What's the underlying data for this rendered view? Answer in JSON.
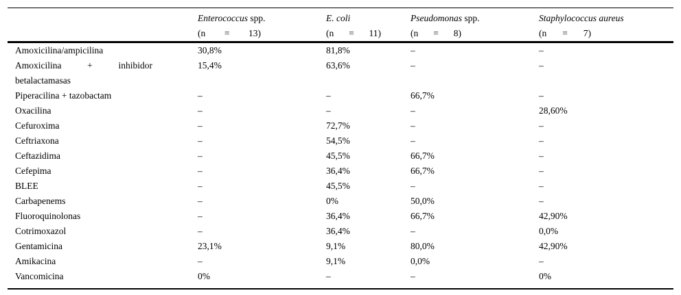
{
  "table": {
    "columns": [
      {
        "italic": "Enterococcus",
        "roman": " spp.",
        "n": "(n = 13)"
      },
      {
        "italic": "E. coli",
        "roman": "",
        "n": "(n = 11)"
      },
      {
        "italic": "Pseudomonas",
        "roman": " spp.",
        "n": "(n = 8)"
      },
      {
        "italic": "Staphylococcus aureus",
        "roman": "",
        "n": "(n = 7)"
      }
    ],
    "rows": [
      {
        "label": "Amoxicilina/ampicilina",
        "values": [
          "30,8%",
          "81,8%",
          "–",
          "–"
        ]
      },
      {
        "label": "Amoxicilina + inhibidor betalactamasas",
        "values": [
          "15,4%",
          "63,6%",
          "–",
          "–"
        ]
      },
      {
        "label": "Piperacilina + tazobactam",
        "values": [
          "–",
          "–",
          "66,7%",
          "–"
        ]
      },
      {
        "label": "Oxacilina",
        "values": [
          "–",
          "–",
          "–",
          "28,60%"
        ]
      },
      {
        "label": "Cefuroxima",
        "values": [
          "–",
          "72,7%",
          "–",
          "–"
        ]
      },
      {
        "label": "Ceftriaxona",
        "values": [
          "–",
          "54,5%",
          "–",
          "–"
        ]
      },
      {
        "label": "Ceftazidima",
        "values": [
          "–",
          "45,5%",
          "66,7%",
          "–"
        ]
      },
      {
        "label": "Cefepima",
        "values": [
          "–",
          "36,4%",
          "66,7%",
          "–"
        ]
      },
      {
        "label": "BLEE",
        "values": [
          "–",
          "45,5%",
          "–",
          "–"
        ]
      },
      {
        "label": "Carbapenems",
        "values": [
          "–",
          "0%",
          "50,0%",
          "–"
        ]
      },
      {
        "label": "Fluoroquinolonas",
        "values": [
          "–",
          "36,4%",
          "66,7%",
          "42,90%"
        ]
      },
      {
        "label": "Cotrimoxazol",
        "values": [
          "–",
          "36,4%",
          "–",
          "0,0%"
        ]
      },
      {
        "label": "Gentamicina",
        "values": [
          "23,1%",
          "9,1%",
          "80,0%",
          "42,90%"
        ]
      },
      {
        "label": "Amikacina",
        "values": [
          "–",
          "9,1%",
          "0,0%",
          "–"
        ]
      },
      {
        "label": "Vancomicina",
        "values": [
          "0%",
          "–",
          "–",
          "0%"
        ]
      }
    ]
  },
  "colors": {
    "text": "#000000",
    "rule": "#000000",
    "background": "#ffffff"
  }
}
